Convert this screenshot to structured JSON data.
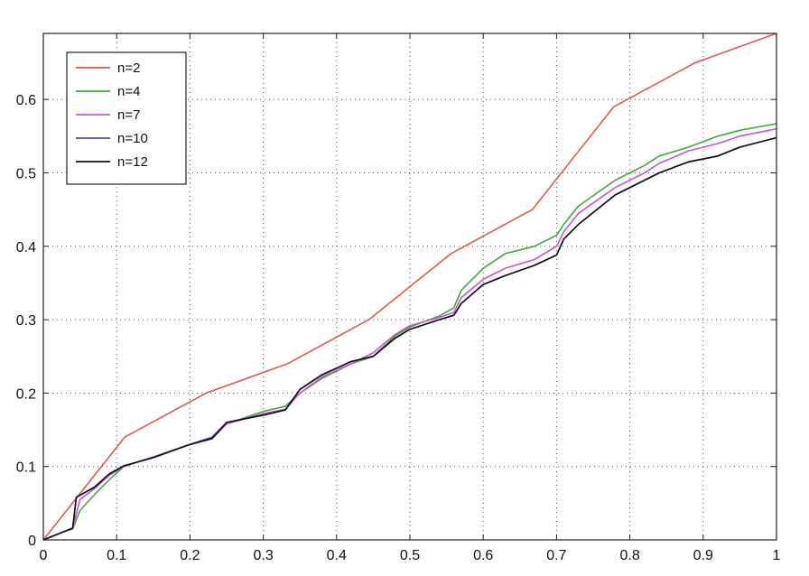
{
  "chart_data": {
    "type": "line",
    "title": "",
    "xlabel": "",
    "ylabel": "",
    "xlim": [
      0,
      1
    ],
    "ylim": [
      0,
      0.69
    ],
    "grid": true,
    "legend_position": "top-left",
    "x_ticks": [
      0,
      0.1,
      0.2,
      0.3,
      0.4,
      0.5,
      0.6,
      0.7,
      0.8,
      0.9,
      1
    ],
    "x_tick_labels": [
      "0",
      "0.1",
      "0.2",
      "0.3",
      "0.4",
      "0.5",
      "0.6",
      "0.7",
      "0.8",
      "0.9",
      "1"
    ],
    "y_ticks": [
      0,
      0.1,
      0.2,
      0.3,
      0.4,
      0.5,
      0.6
    ],
    "y_tick_labels": [
      "0",
      "0.1",
      "0.2",
      "0.3",
      "0.4",
      "0.5",
      "0.6"
    ],
    "series": [
      {
        "name": "n=2",
        "color": "#e05a4a",
        "points": [
          [
            0,
            0
          ],
          [
            0.111,
            0.14
          ],
          [
            0.222,
            0.2
          ],
          [
            0.333,
            0.24
          ],
          [
            0.444,
            0.3
          ],
          [
            0.556,
            0.39
          ],
          [
            0.667,
            0.45
          ],
          [
            0.778,
            0.59
          ],
          [
            0.889,
            0.65
          ],
          [
            1,
            0.69
          ]
        ]
      },
      {
        "name": "n=4",
        "color": "#3daa3d",
        "points": [
          [
            0,
            0
          ],
          [
            0.03,
            0.012
          ],
          [
            0.04,
            0.015
          ],
          [
            0.05,
            0.04
          ],
          [
            0.07,
            0.062
          ],
          [
            0.09,
            0.082
          ],
          [
            0.11,
            0.1
          ],
          [
            0.15,
            0.113
          ],
          [
            0.2,
            0.13
          ],
          [
            0.23,
            0.138
          ],
          [
            0.25,
            0.158
          ],
          [
            0.3,
            0.175
          ],
          [
            0.33,
            0.182
          ],
          [
            0.35,
            0.2
          ],
          [
            0.38,
            0.22
          ],
          [
            0.42,
            0.24
          ],
          [
            0.45,
            0.25
          ],
          [
            0.48,
            0.278
          ],
          [
            0.5,
            0.29
          ],
          [
            0.54,
            0.305
          ],
          [
            0.56,
            0.316
          ],
          [
            0.57,
            0.34
          ],
          [
            0.6,
            0.37
          ],
          [
            0.63,
            0.39
          ],
          [
            0.67,
            0.4
          ],
          [
            0.7,
            0.415
          ],
          [
            0.71,
            0.43
          ],
          [
            0.73,
            0.455
          ],
          [
            0.78,
            0.49
          ],
          [
            0.82,
            0.51
          ],
          [
            0.84,
            0.523
          ],
          [
            0.88,
            0.535
          ],
          [
            0.92,
            0.55
          ],
          [
            0.95,
            0.558
          ],
          [
            1,
            0.567
          ]
        ]
      },
      {
        "name": "n=7",
        "color": "#cc55cc",
        "points": [
          [
            0,
            0
          ],
          [
            0.03,
            0.012
          ],
          [
            0.04,
            0.016
          ],
          [
            0.05,
            0.055
          ],
          [
            0.07,
            0.07
          ],
          [
            0.09,
            0.088
          ],
          [
            0.11,
            0.1
          ],
          [
            0.15,
            0.113
          ],
          [
            0.2,
            0.13
          ],
          [
            0.23,
            0.138
          ],
          [
            0.25,
            0.158
          ],
          [
            0.3,
            0.172
          ],
          [
            0.33,
            0.178
          ],
          [
            0.35,
            0.2
          ],
          [
            0.38,
            0.222
          ],
          [
            0.42,
            0.24
          ],
          [
            0.45,
            0.255
          ],
          [
            0.48,
            0.28
          ],
          [
            0.5,
            0.292
          ],
          [
            0.54,
            0.303
          ],
          [
            0.56,
            0.31
          ],
          [
            0.57,
            0.33
          ],
          [
            0.6,
            0.355
          ],
          [
            0.63,
            0.37
          ],
          [
            0.67,
            0.382
          ],
          [
            0.7,
            0.4
          ],
          [
            0.71,
            0.42
          ],
          [
            0.73,
            0.445
          ],
          [
            0.78,
            0.48
          ],
          [
            0.82,
            0.5
          ],
          [
            0.84,
            0.513
          ],
          [
            0.88,
            0.53
          ],
          [
            0.92,
            0.54
          ],
          [
            0.95,
            0.55
          ],
          [
            1,
            0.56
          ]
        ]
      },
      {
        "name": "n=10",
        "color": "#4a4ab0",
        "points": [
          [
            0,
            0
          ],
          [
            0.03,
            0.012
          ],
          [
            0.04,
            0.016
          ],
          [
            0.045,
            0.058
          ],
          [
            0.07,
            0.072
          ],
          [
            0.09,
            0.09
          ],
          [
            0.11,
            0.101
          ],
          [
            0.15,
            0.112
          ],
          [
            0.2,
            0.13
          ],
          [
            0.23,
            0.14
          ],
          [
            0.25,
            0.16
          ],
          [
            0.3,
            0.17
          ],
          [
            0.33,
            0.177
          ],
          [
            0.35,
            0.205
          ],
          [
            0.38,
            0.225
          ],
          [
            0.42,
            0.243
          ],
          [
            0.45,
            0.25
          ],
          [
            0.48,
            0.275
          ],
          [
            0.5,
            0.287
          ],
          [
            0.54,
            0.3
          ],
          [
            0.56,
            0.306
          ],
          [
            0.57,
            0.322
          ],
          [
            0.6,
            0.348
          ],
          [
            0.63,
            0.36
          ],
          [
            0.67,
            0.374
          ],
          [
            0.7,
            0.388
          ],
          [
            0.71,
            0.41
          ],
          [
            0.73,
            0.43
          ],
          [
            0.78,
            0.47
          ],
          [
            0.82,
            0.49
          ],
          [
            0.84,
            0.5
          ],
          [
            0.88,
            0.515
          ],
          [
            0.92,
            0.523
          ],
          [
            0.95,
            0.535
          ],
          [
            1,
            0.548
          ]
        ]
      },
      {
        "name": "n=12",
        "color": "#111111",
        "points": [
          [
            0,
            0
          ],
          [
            0.03,
            0.012
          ],
          [
            0.04,
            0.016
          ],
          [
            0.045,
            0.058
          ],
          [
            0.07,
            0.072
          ],
          [
            0.09,
            0.09
          ],
          [
            0.11,
            0.101
          ],
          [
            0.15,
            0.112
          ],
          [
            0.2,
            0.13
          ],
          [
            0.23,
            0.138
          ],
          [
            0.25,
            0.16
          ],
          [
            0.3,
            0.17
          ],
          [
            0.33,
            0.177
          ],
          [
            0.35,
            0.205
          ],
          [
            0.38,
            0.225
          ],
          [
            0.42,
            0.243
          ],
          [
            0.45,
            0.25
          ],
          [
            0.48,
            0.275
          ],
          [
            0.5,
            0.287
          ],
          [
            0.54,
            0.3
          ],
          [
            0.56,
            0.306
          ],
          [
            0.57,
            0.322
          ],
          [
            0.6,
            0.348
          ],
          [
            0.63,
            0.36
          ],
          [
            0.67,
            0.374
          ],
          [
            0.7,
            0.388
          ],
          [
            0.71,
            0.41
          ],
          [
            0.73,
            0.43
          ],
          [
            0.78,
            0.47
          ],
          [
            0.82,
            0.49
          ],
          [
            0.84,
            0.5
          ],
          [
            0.88,
            0.515
          ],
          [
            0.92,
            0.523
          ],
          [
            0.95,
            0.535
          ],
          [
            1,
            0.548
          ]
        ]
      }
    ]
  }
}
